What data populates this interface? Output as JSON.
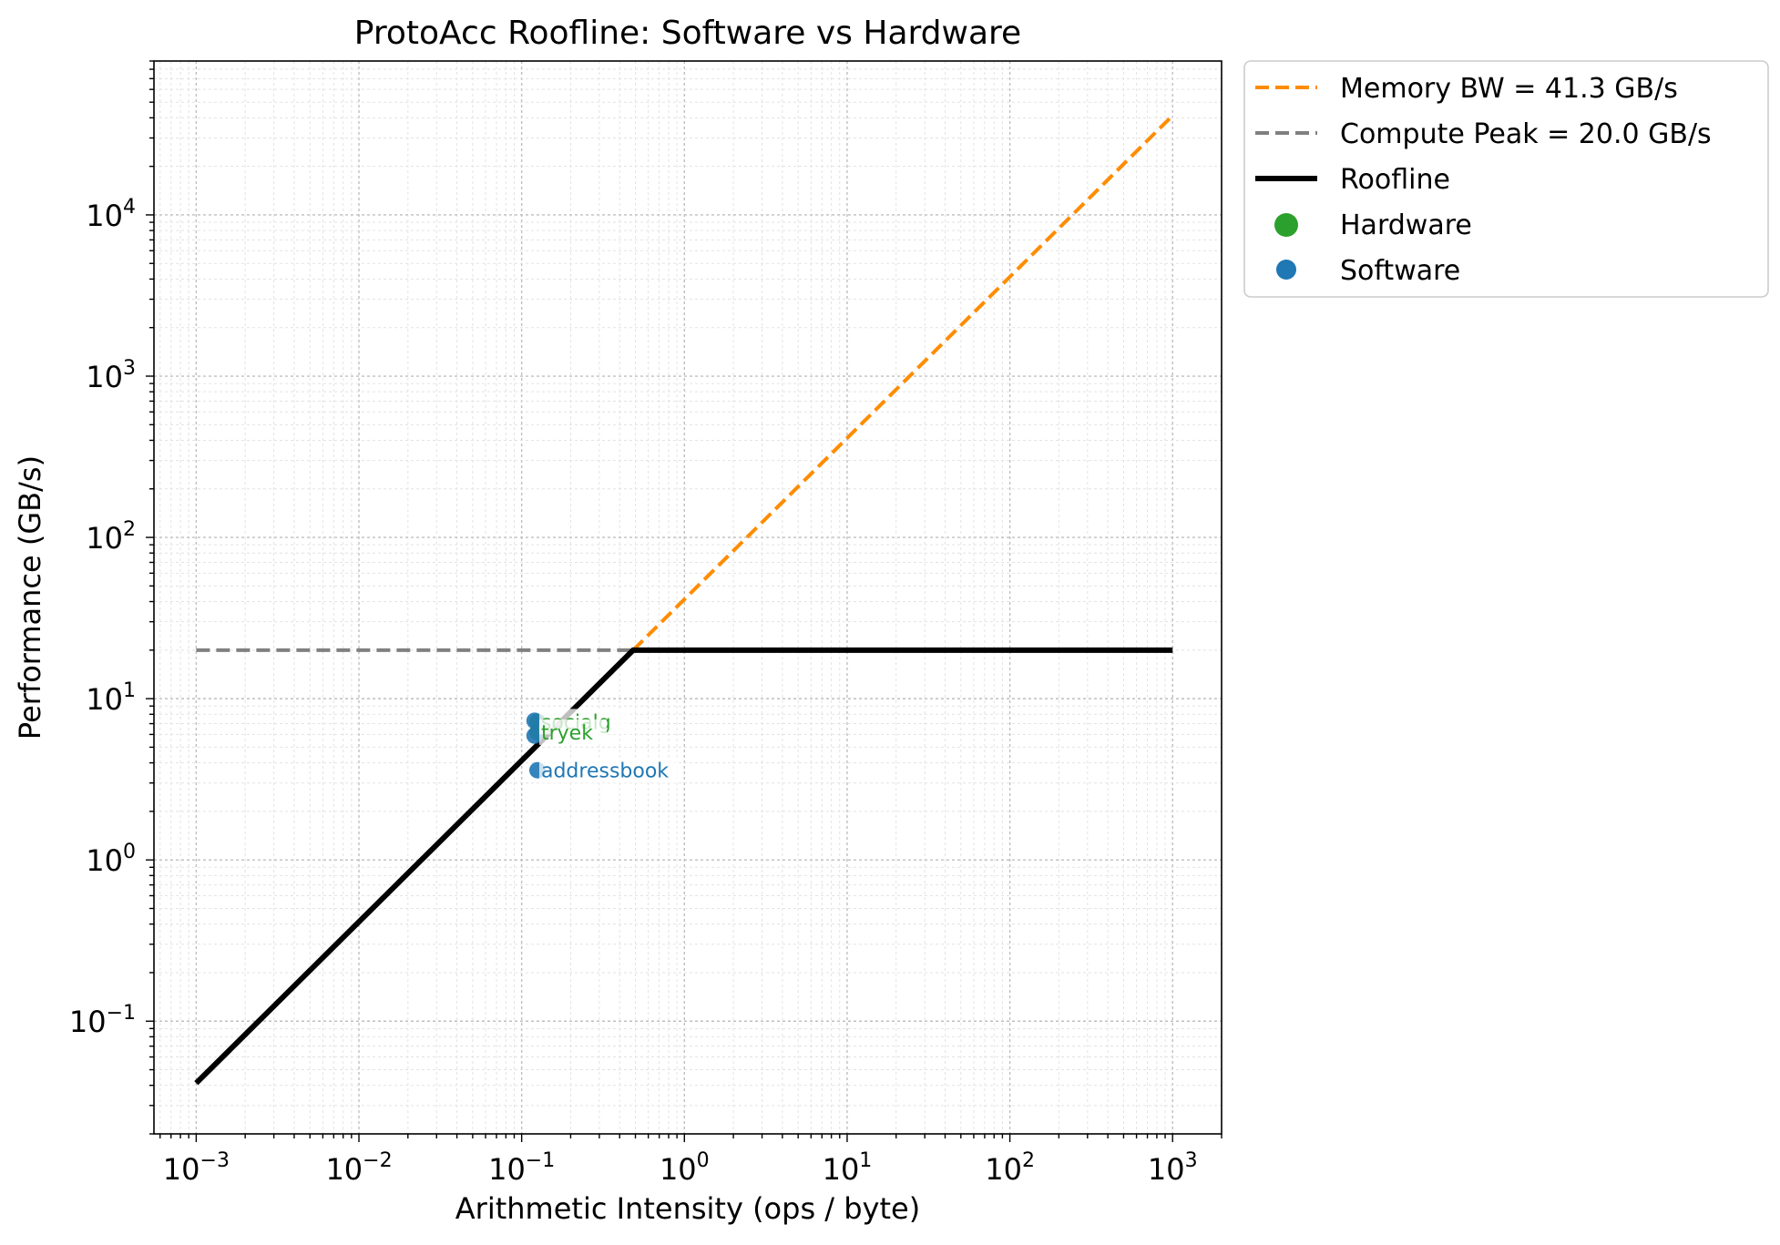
{
  "chart_data": {
    "type": "line",
    "title": "ProtoAcc Roofline: Software vs Hardware",
    "xlabel": "Arithmetic Intensity (ops / byte)",
    "ylabel": "Performance (GB/s)",
    "xscale": "log",
    "yscale": "log",
    "xlim": [
      0.00055,
      2000
    ],
    "ylim": [
      0.02,
      90000
    ],
    "grid": true,
    "legend_position": "outside-top-right",
    "x_ticks": [
      {
        "value": 0.001,
        "base": "10",
        "exp": "−3"
      },
      {
        "value": 0.01,
        "base": "10",
        "exp": "−2"
      },
      {
        "value": 0.1,
        "base": "10",
        "exp": "−1"
      },
      {
        "value": 1,
        "base": "10",
        "exp": "0"
      },
      {
        "value": 10,
        "base": "10",
        "exp": "1"
      },
      {
        "value": 100,
        "base": "10",
        "exp": "2"
      },
      {
        "value": 1000,
        "base": "10",
        "exp": "3"
      }
    ],
    "y_ticks": [
      {
        "value": 0.1,
        "base": "10",
        "exp": "−1"
      },
      {
        "value": 1,
        "base": "10",
        "exp": "0"
      },
      {
        "value": 10,
        "base": "10",
        "exp": "1"
      },
      {
        "value": 100,
        "base": "10",
        "exp": "2"
      },
      {
        "value": 1000,
        "base": "10",
        "exp": "3"
      },
      {
        "value": 10000,
        "base": "10",
        "exp": "4"
      }
    ],
    "series": [
      {
        "name": "Memory BW = 41.3 GB/s",
        "kind": "dashed-line",
        "color": "#ff8c00",
        "x": [
          0.484,
          1000
        ],
        "y": [
          20.0,
          41300
        ]
      },
      {
        "name": "Compute Peak = 20.0 GB/s",
        "kind": "dashed-line",
        "color": "#808080",
        "x": [
          0.001,
          0.484
        ],
        "y": [
          20.0,
          20.0
        ]
      },
      {
        "name": "Roofline",
        "kind": "solid-line",
        "color": "#000000",
        "x": [
          0.001,
          0.484,
          1000
        ],
        "y": [
          0.0413,
          20.0,
          20.0
        ]
      },
      {
        "name": "Hardware",
        "kind": "scatter",
        "color": "#2ca02c",
        "points": [
          {
            "x": 0.125,
            "y": 7.2,
            "label": "socialg"
          },
          {
            "x": 0.125,
            "y": 6.2,
            "label": "tryek"
          }
        ]
      },
      {
        "name": "Software",
        "kind": "scatter",
        "color": "#1f77b4",
        "points": [
          {
            "x": 0.12,
            "y": 7.3,
            "label": ""
          },
          {
            "x": 0.12,
            "y": 5.9,
            "label": ""
          },
          {
            "x": 0.125,
            "y": 3.6,
            "label": "addressbook"
          }
        ]
      }
    ],
    "legend": [
      {
        "label": "Memory BW = 41.3 GB/s",
        "kind": "dashed-line",
        "color": "#ff8c00"
      },
      {
        "label": "Compute Peak = 20.0 GB/s",
        "kind": "dashed-line",
        "color": "#808080"
      },
      {
        "label": "Roofline",
        "kind": "solid-line",
        "color": "#000000"
      },
      {
        "label": "Hardware",
        "kind": "marker",
        "color": "#2ca02c"
      },
      {
        "label": "Software",
        "kind": "marker",
        "color": "#1f77b4"
      }
    ]
  }
}
